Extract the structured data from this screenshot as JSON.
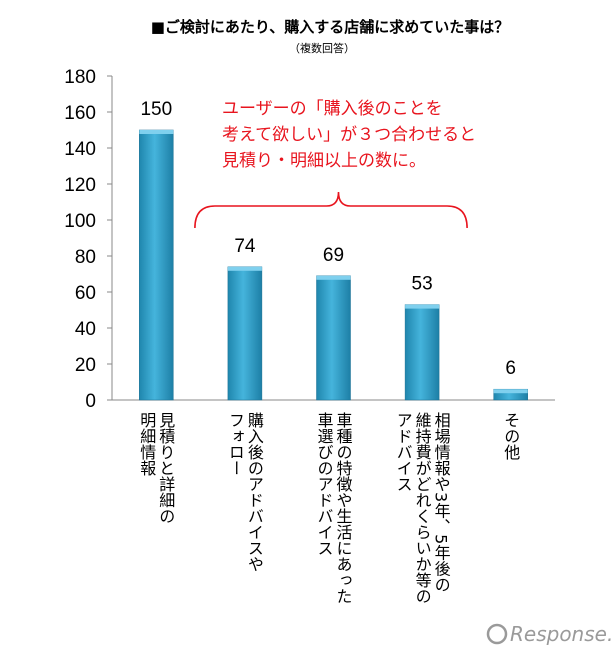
{
  "chart_data": {
    "type": "bar",
    "title": "■ご検討にあたり、購入する店舗に求めていた事は？",
    "subtitle": "（複数回答）",
    "categories": [
      [
        "見積りと詳細の",
        "明細情報"
      ],
      [
        "購入後のアドバイスや",
        "フォロー"
      ],
      [
        "車種の特徴や生活にあった",
        "車選びのアドバイス"
      ],
      [
        "相場情報や3年、5年後の",
        "維持費がどれくらいか等の",
        "アドバイス"
      ],
      [
        "その他"
      ]
    ],
    "values": [
      150,
      74,
      69,
      53,
      6
    ],
    "ylim": [
      0,
      180
    ],
    "yticks": [
      0,
      20,
      40,
      60,
      80,
      100,
      120,
      140,
      160,
      180
    ],
    "grid": false,
    "bar_color": "#2f9fc9",
    "annotation": {
      "lines": [
        "ユーザーの「購入後のことを",
        "考えて欲しい」が３つ合わせると",
        "見積り・明細以上の数に。"
      ],
      "color": "#e8141e"
    }
  },
  "watermark": "Response."
}
